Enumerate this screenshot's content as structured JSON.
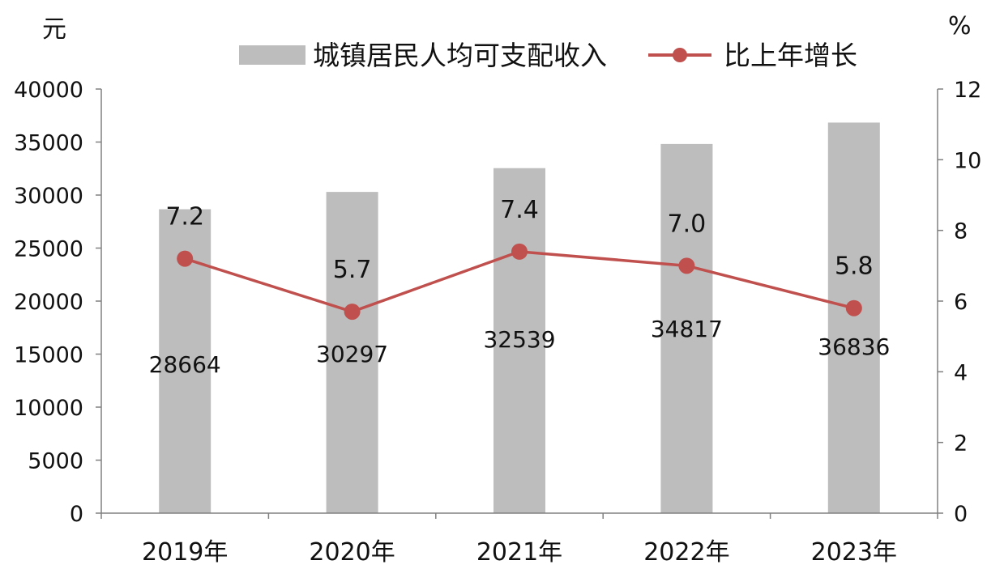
{
  "chart_data": {
    "type": "bar",
    "categories": [
      "2019年",
      "2020年",
      "2021年",
      "2022年",
      "2023年"
    ],
    "y_left_unit": "元",
    "y_right_unit": "%",
    "y_left_range": [
      0,
      40000
    ],
    "y_left_ticks": [
      "0",
      "5000",
      "10000",
      "15000",
      "20000",
      "25000",
      "30000",
      "35000",
      "40000"
    ],
    "y_right_range": [
      0,
      12
    ],
    "y_right_ticks": [
      "0",
      "2",
      "4",
      "6",
      "8",
      "10",
      "12"
    ],
    "grid": false,
    "legend_position": "top",
    "series": [
      {
        "name": "城镇居民人均可支配收入",
        "type": "bar",
        "axis": "left",
        "color": "#bdbdbd",
        "values": [
          28664,
          30297,
          32539,
          34817,
          36836
        ],
        "labels": [
          "28664",
          "30297",
          "32539",
          "34817",
          "36836"
        ]
      },
      {
        "name": "比上年增长",
        "type": "line",
        "axis": "right",
        "color": "#c0504d",
        "values": [
          7.2,
          5.7,
          7.4,
          7.0,
          5.8
        ],
        "labels": [
          "7.2",
          "5.7",
          "7.4",
          "7.0",
          "5.8"
        ]
      }
    ]
  }
}
